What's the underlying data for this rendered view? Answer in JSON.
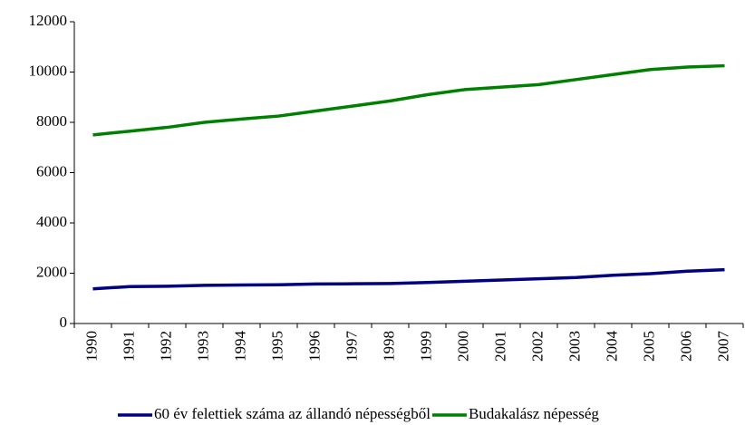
{
  "chart_data": {
    "type": "line",
    "categories": [
      "1990",
      "1991",
      "1992",
      "1993",
      "1994",
      "1995",
      "1996",
      "1997",
      "1998",
      "1999",
      "2000",
      "2001",
      "2002",
      "2003",
      "2004",
      "2005",
      "2006",
      "2007"
    ],
    "series": [
      {
        "name": "60 év felettiek száma az állandó népességből",
        "color": "#000080",
        "values": [
          1380,
          1470,
          1480,
          1520,
          1530,
          1540,
          1570,
          1580,
          1590,
          1630,
          1680,
          1730,
          1780,
          1830,
          1920,
          1980,
          2080,
          2140
        ]
      },
      {
        "name": "Budakalász népesség",
        "color": "#008000",
        "values": [
          7500,
          7650,
          7800,
          8000,
          8130,
          8250,
          8450,
          8650,
          8850,
          9100,
          9300,
          9400,
          9500,
          9700,
          9900,
          10100,
          10200,
          10250
        ]
      }
    ],
    "ylim": [
      0,
      12000
    ],
    "yticks": [
      0,
      2000,
      4000,
      6000,
      8000,
      10000,
      12000
    ],
    "grid": false,
    "legend": "bottom"
  }
}
